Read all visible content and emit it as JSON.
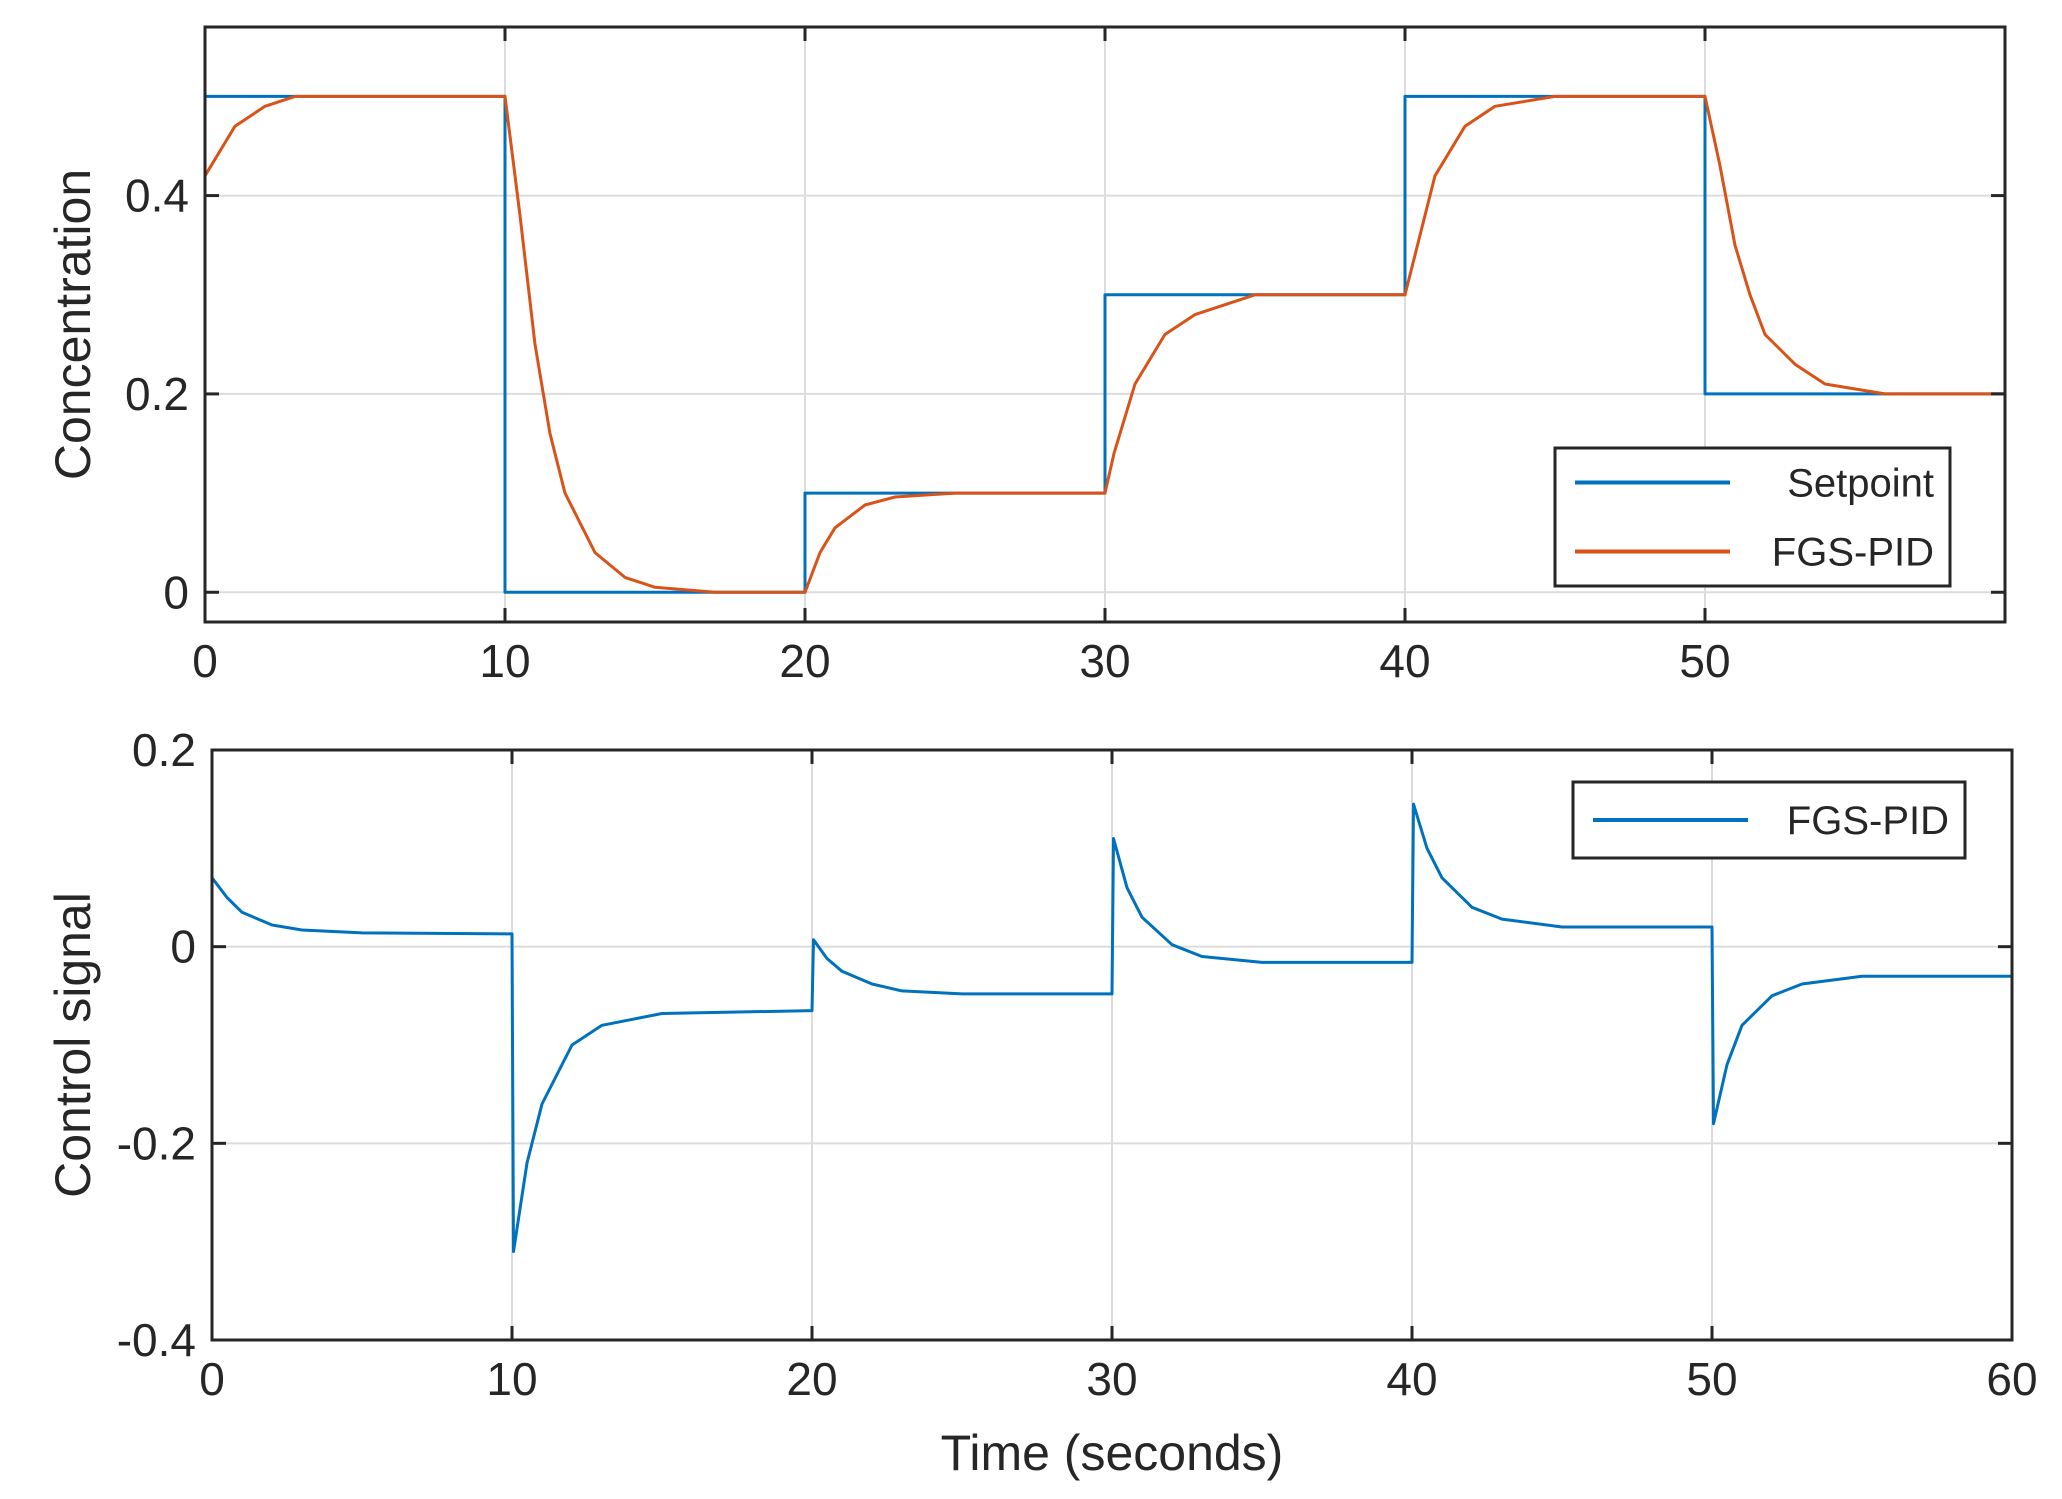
{
  "chart_data": [
    {
      "type": "line",
      "ylabel": "Concentration",
      "xlim": [
        0,
        60
      ],
      "ylim": [
        -0.03,
        0.57
      ],
      "xticks": [
        0,
        10,
        20,
        30,
        40,
        50
      ],
      "xtick_labels": [
        "0",
        "10",
        "20",
        "30",
        "40",
        "50"
      ],
      "yticks": [
        0,
        0.2,
        0.4
      ],
      "ytick_labels": [
        "0",
        "0.2",
        "0.4"
      ],
      "grid": true,
      "legend_position": "bottom-right",
      "series": [
        {
          "name": "Setpoint",
          "color": "#0072BD",
          "kind": "step",
          "segments": [
            {
              "x_start": 0,
              "x_end": 10,
              "y": 0.5
            },
            {
              "x_start": 10,
              "x_end": 20,
              "y": 0.0
            },
            {
              "x_start": 20,
              "x_end": 30,
              "y": 0.1
            },
            {
              "x_start": 30,
              "x_end": 40,
              "y": 0.3
            },
            {
              "x_start": 40,
              "x_end": 50,
              "y": 0.5
            },
            {
              "x_start": 50,
              "x_end": 60,
              "y": 0.2
            }
          ]
        },
        {
          "name": "FGS-PID",
          "color": "#D95319",
          "kind": "response",
          "x": [
            0,
            1,
            2,
            3,
            4,
            10,
            10.5,
            11,
            11.5,
            12,
            13,
            14,
            15,
            17,
            20,
            20.5,
            21,
            22,
            23,
            25,
            30,
            30.3,
            31,
            32,
            33,
            35,
            40,
            40.5,
            41,
            42,
            43,
            45,
            50,
            50.5,
            51,
            51.5,
            52,
            53,
            54,
            56,
            60
          ],
          "y": [
            0.42,
            0.47,
            0.49,
            0.5,
            0.5,
            0.5,
            0.38,
            0.25,
            0.16,
            0.1,
            0.04,
            0.015,
            0.005,
            0.0,
            0.0,
            0.04,
            0.065,
            0.088,
            0.096,
            0.1,
            0.1,
            0.14,
            0.21,
            0.26,
            0.28,
            0.3,
            0.3,
            0.36,
            0.42,
            0.47,
            0.49,
            0.5,
            0.5,
            0.43,
            0.35,
            0.3,
            0.26,
            0.23,
            0.21,
            0.2,
            0.2
          ]
        }
      ]
    },
    {
      "type": "line",
      "xlabel": "Time (seconds)",
      "ylabel": "Control signal",
      "xlim": [
        0,
        60
      ],
      "ylim": [
        -0.4,
        0.2
      ],
      "xticks": [
        0,
        10,
        20,
        30,
        40,
        50,
        60
      ],
      "xtick_labels": [
        "0",
        "10",
        "20",
        "30",
        "40",
        "50",
        "60"
      ],
      "yticks": [
        -0.4,
        -0.2,
        0,
        0.2
      ],
      "ytick_labels": [
        "-0.4",
        "-0.2",
        "0",
        "0.2"
      ],
      "grid": true,
      "legend_position": "top-right",
      "series": [
        {
          "name": "FGS-PID",
          "color": "#0072BD",
          "kind": "response",
          "x": [
            0,
            0.5,
            1,
            2,
            3,
            5,
            10,
            10.05,
            10.5,
            11,
            12,
            13,
            15,
            20,
            20.05,
            20.5,
            21,
            22,
            23,
            25,
            30,
            30.05,
            30.5,
            31,
            32,
            33,
            35,
            40,
            40.05,
            40.5,
            41,
            42,
            43,
            45,
            50,
            50.05,
            50.5,
            51,
            52,
            53,
            55,
            60
          ],
          "y": [
            0.07,
            0.05,
            0.035,
            0.022,
            0.017,
            0.014,
            0.013,
            -0.31,
            -0.22,
            -0.16,
            -0.1,
            -0.08,
            -0.068,
            -0.065,
            0.007,
            -0.012,
            -0.025,
            -0.038,
            -0.045,
            -0.048,
            -0.048,
            0.11,
            0.06,
            0.03,
            0.002,
            -0.01,
            -0.016,
            -0.016,
            0.145,
            0.1,
            0.07,
            0.04,
            0.028,
            0.02,
            0.02,
            -0.18,
            -0.12,
            -0.08,
            -0.05,
            -0.038,
            -0.03,
            -0.03
          ]
        }
      ]
    }
  ]
}
